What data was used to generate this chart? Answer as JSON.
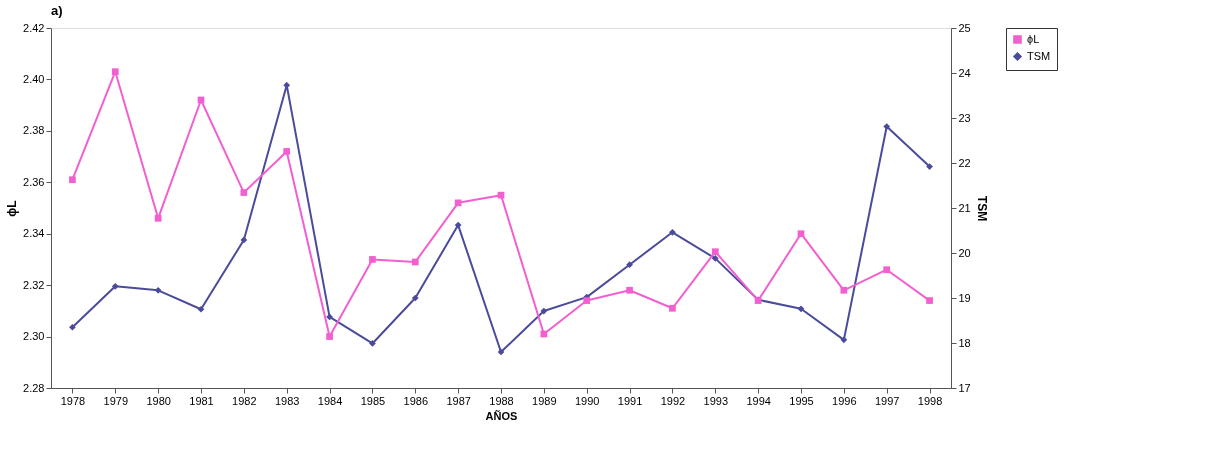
{
  "chart_data": {
    "type": "line",
    "title": "a)",
    "xlabel": "AÑOS",
    "ylabel": "ϕL",
    "y2label": "TSM",
    "categories": [
      "1978",
      "1979",
      "1980",
      "1981",
      "1982",
      "1983",
      "1984",
      "1985",
      "1986",
      "1987",
      "1988",
      "1989",
      "1990",
      "1991",
      "1992",
      "1993",
      "1994",
      "1995",
      "1996",
      "1997",
      "1998"
    ],
    "series": [
      {
        "name": "ϕL",
        "color": "#f25fd0",
        "marker": "square",
        "values": [
          2.361,
          2.403,
          2.346,
          2.392,
          2.356,
          2.372,
          2.3,
          2.33,
          2.329,
          2.352,
          2.355,
          2.301,
          2.314,
          2.318,
          2.311,
          2.333,
          2.314,
          2.34,
          2.318,
          2.326,
          2.314
        ]
      },
      {
        "name": "TSM",
        "color": "#4b4b9b",
        "marker": "diamond",
        "axis": "y2",
        "values": [
          18.35,
          19.26,
          19.17,
          18.75,
          20.29,
          23.73,
          18.58,
          17.99,
          19.0,
          20.62,
          17.8,
          18.71,
          19.02,
          19.74,
          20.46,
          19.88,
          18.96,
          18.76,
          18.07,
          22.81,
          21.92
        ]
      }
    ],
    "ylim": [
      2.28,
      2.42
    ],
    "yticks": [
      2.28,
      {
        "value": 2.3,
        "label": "2.30"
      },
      2.32,
      2.34,
      2.36,
      2.38,
      {
        "value": 2.4,
        "label": "2.40"
      },
      2.42
    ],
    "y2lim": [
      17,
      25
    ],
    "y2ticks": [
      17,
      18,
      19,
      20,
      21,
      22,
      23,
      24,
      25
    ],
    "grid": false,
    "legend": "right",
    "line_style": "solid"
  }
}
